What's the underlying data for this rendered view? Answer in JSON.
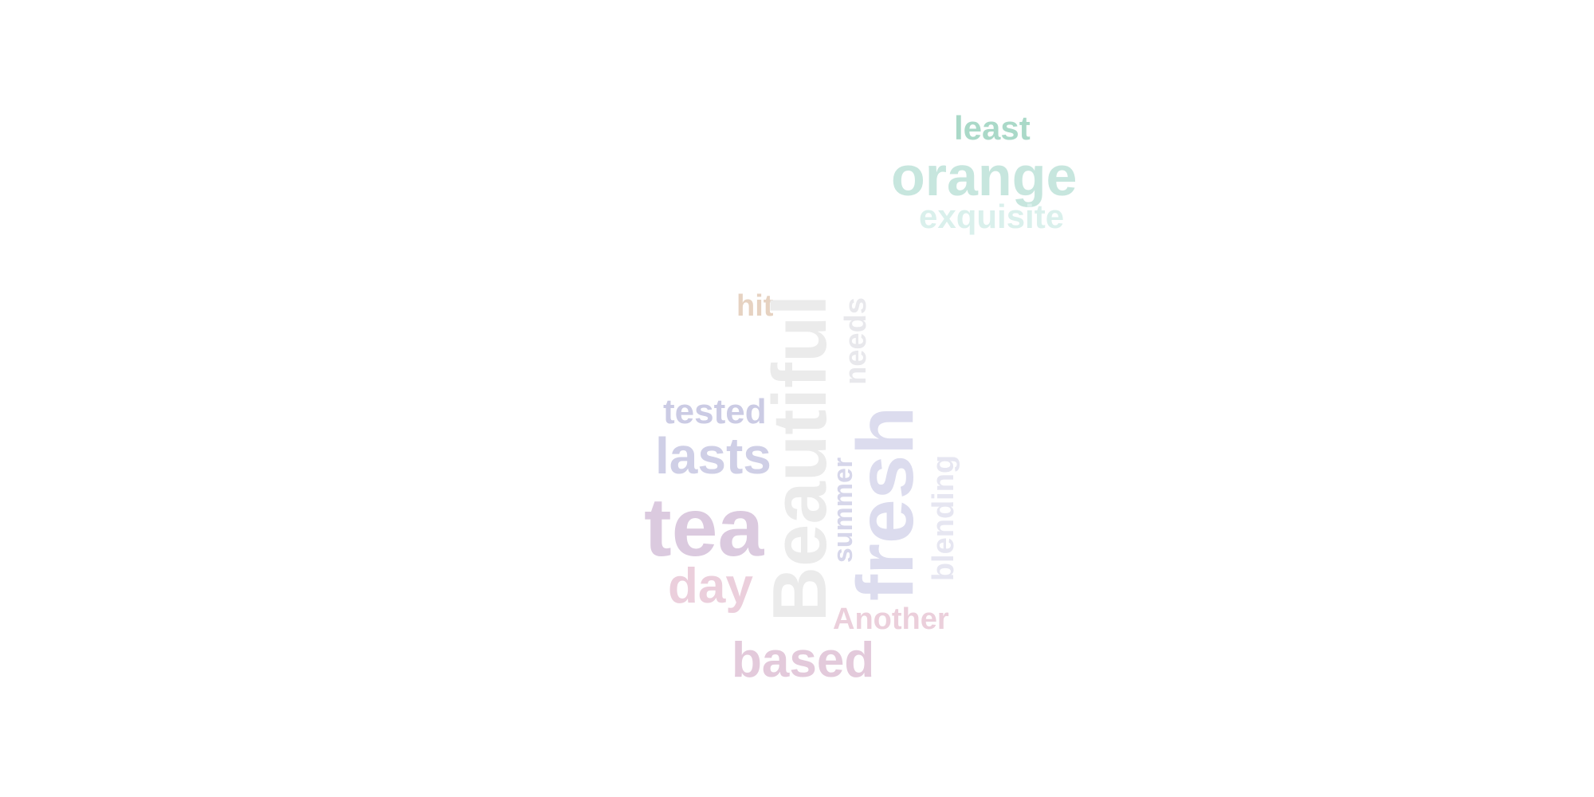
{
  "words": [
    {
      "text": "least",
      "color": "#aad9c8"
    },
    {
      "text": "orange",
      "color": "#c7e6de"
    },
    {
      "text": "exquisite",
      "color": "#daf0ec"
    },
    {
      "text": "hit",
      "color": "#e6d2c1"
    },
    {
      "text": "Beautiful",
      "color": "#ebebeb"
    },
    {
      "text": "needs",
      "color": "#e8e8ec"
    },
    {
      "text": "tested",
      "color": "#cbcbe4"
    },
    {
      "text": "lasts",
      "color": "#cfcfe6"
    },
    {
      "text": "fresh",
      "color": "#dcdcee"
    },
    {
      "text": "summer",
      "color": "#d6d6ea"
    },
    {
      "text": "blending",
      "color": "#e6e6f1"
    },
    {
      "text": "tea",
      "color": "#dbcadf"
    },
    {
      "text": "day",
      "color": "#ebcfdc"
    },
    {
      "text": "Another",
      "color": "#ebcfdb"
    },
    {
      "text": "based",
      "color": "#e3cadb"
    }
  ]
}
